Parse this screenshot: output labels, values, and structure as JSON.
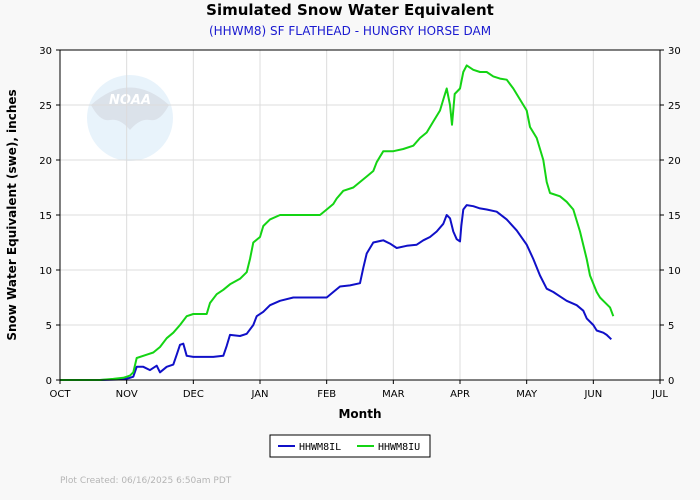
{
  "chart_data": {
    "type": "line",
    "title": "Simulated Snow Water Equivalent",
    "subtitle": "(HHWM8) SF FLATHEAD - HUNGRY HORSE DAM",
    "xlabel": "Month",
    "ylabel": "Snow Water Equivalent (swe),  inches",
    "x_range": [
      0,
      9
    ],
    "x_ticks": [
      "OCT",
      "NOV",
      "DEC",
      "JAN",
      "FEB",
      "MAR",
      "APR",
      "MAY",
      "JUN",
      "JUL"
    ],
    "y_range": [
      0,
      30
    ],
    "y_ticks": [
      0,
      5,
      10,
      15,
      20,
      25,
      30
    ],
    "grid": true,
    "legend_position": "bottom-center",
    "logo_text": "NOAA",
    "series": [
      {
        "name": "HHWM8IL",
        "color": "#1010c8",
        "points": [
          [
            0,
            0
          ],
          [
            0.6,
            0
          ],
          [
            0.95,
            0.05
          ],
          [
            1.05,
            0.2
          ],
          [
            1.1,
            0.3
          ],
          [
            1.15,
            1.2
          ],
          [
            1.25,
            1.2
          ],
          [
            1.35,
            0.9
          ],
          [
            1.45,
            1.3
          ],
          [
            1.5,
            0.7
          ],
          [
            1.6,
            1.2
          ],
          [
            1.7,
            1.4
          ],
          [
            1.75,
            2.3
          ],
          [
            1.8,
            3.2
          ],
          [
            1.85,
            3.3
          ],
          [
            1.9,
            2.2
          ],
          [
            2.0,
            2.1
          ],
          [
            2.15,
            2.1
          ],
          [
            2.3,
            2.1
          ],
          [
            2.45,
            2.2
          ],
          [
            2.5,
            3.1
          ],
          [
            2.55,
            4.1
          ],
          [
            2.7,
            4.0
          ],
          [
            2.8,
            4.2
          ],
          [
            2.9,
            5.0
          ],
          [
            2.95,
            5.8
          ],
          [
            3.05,
            6.2
          ],
          [
            3.15,
            6.8
          ],
          [
            3.3,
            7.2
          ],
          [
            3.5,
            7.5
          ],
          [
            3.8,
            7.5
          ],
          [
            4.0,
            7.5
          ],
          [
            4.1,
            8.0
          ],
          [
            4.2,
            8.5
          ],
          [
            4.35,
            8.6
          ],
          [
            4.5,
            8.8
          ],
          [
            4.55,
            10.2
          ],
          [
            4.6,
            11.5
          ],
          [
            4.7,
            12.5
          ],
          [
            4.85,
            12.7
          ],
          [
            4.95,
            12.4
          ],
          [
            5.05,
            12.0
          ],
          [
            5.2,
            12.2
          ],
          [
            5.35,
            12.3
          ],
          [
            5.45,
            12.7
          ],
          [
            5.55,
            13.0
          ],
          [
            5.65,
            13.5
          ],
          [
            5.75,
            14.2
          ],
          [
            5.8,
            15.0
          ],
          [
            5.85,
            14.7
          ],
          [
            5.9,
            13.5
          ],
          [
            5.95,
            12.8
          ],
          [
            6.0,
            12.6
          ],
          [
            6.02,
            14.0
          ],
          [
            6.05,
            15.5
          ],
          [
            6.1,
            15.9
          ],
          [
            6.2,
            15.8
          ],
          [
            6.3,
            15.6
          ],
          [
            6.4,
            15.5
          ],
          [
            6.55,
            15.3
          ],
          [
            6.7,
            14.6
          ],
          [
            6.85,
            13.6
          ],
          [
            7.0,
            12.3
          ],
          [
            7.1,
            11.0
          ],
          [
            7.2,
            9.5
          ],
          [
            7.3,
            8.3
          ],
          [
            7.4,
            8.0
          ],
          [
            7.5,
            7.6
          ],
          [
            7.6,
            7.2
          ],
          [
            7.75,
            6.8
          ],
          [
            7.85,
            6.3
          ],
          [
            7.9,
            5.6
          ],
          [
            8.0,
            5.0
          ],
          [
            8.05,
            4.5
          ],
          [
            8.15,
            4.3
          ],
          [
            8.2,
            4.1
          ],
          [
            8.27,
            3.7
          ]
        ]
      },
      {
        "name": "HHWM8IU",
        "color": "#14d414",
        "points": [
          [
            0,
            0
          ],
          [
            0.6,
            0
          ],
          [
            0.8,
            0.1
          ],
          [
            0.95,
            0.2
          ],
          [
            1.05,
            0.4
          ],
          [
            1.1,
            0.7
          ],
          [
            1.15,
            2.0
          ],
          [
            1.3,
            2.3
          ],
          [
            1.4,
            2.5
          ],
          [
            1.5,
            3.0
          ],
          [
            1.6,
            3.8
          ],
          [
            1.7,
            4.3
          ],
          [
            1.8,
            5.0
          ],
          [
            1.9,
            5.8
          ],
          [
            2.0,
            6.0
          ],
          [
            2.1,
            6.0
          ],
          [
            2.2,
            6.0
          ],
          [
            2.25,
            7.0
          ],
          [
            2.35,
            7.8
          ],
          [
            2.45,
            8.2
          ],
          [
            2.55,
            8.7
          ],
          [
            2.7,
            9.2
          ],
          [
            2.8,
            9.8
          ],
          [
            2.85,
            11.0
          ],
          [
            2.9,
            12.5
          ],
          [
            3.0,
            13.0
          ],
          [
            3.05,
            14.0
          ],
          [
            3.15,
            14.6
          ],
          [
            3.3,
            15.0
          ],
          [
            3.6,
            15.0
          ],
          [
            3.9,
            15.0
          ],
          [
            4.0,
            15.5
          ],
          [
            4.1,
            16.0
          ],
          [
            4.15,
            16.5
          ],
          [
            4.25,
            17.2
          ],
          [
            4.4,
            17.5
          ],
          [
            4.5,
            18.0
          ],
          [
            4.6,
            18.5
          ],
          [
            4.7,
            19.0
          ],
          [
            4.75,
            19.8
          ],
          [
            4.85,
            20.8
          ],
          [
            5.0,
            20.8
          ],
          [
            5.15,
            21.0
          ],
          [
            5.3,
            21.3
          ],
          [
            5.4,
            22.0
          ],
          [
            5.5,
            22.5
          ],
          [
            5.6,
            23.5
          ],
          [
            5.7,
            24.5
          ],
          [
            5.75,
            25.5
          ],
          [
            5.8,
            26.5
          ],
          [
            5.85,
            25.0
          ],
          [
            5.88,
            23.2
          ],
          [
            5.92,
            26.0
          ],
          [
            6.0,
            26.5
          ],
          [
            6.05,
            28.0
          ],
          [
            6.1,
            28.6
          ],
          [
            6.2,
            28.2
          ],
          [
            6.3,
            28.0
          ],
          [
            6.4,
            28.0
          ],
          [
            6.5,
            27.6
          ],
          [
            6.6,
            27.4
          ],
          [
            6.7,
            27.3
          ],
          [
            6.8,
            26.5
          ],
          [
            6.9,
            25.5
          ],
          [
            7.0,
            24.5
          ],
          [
            7.05,
            23.0
          ],
          [
            7.15,
            22.0
          ],
          [
            7.25,
            20.0
          ],
          [
            7.3,
            18.0
          ],
          [
            7.35,
            17.0
          ],
          [
            7.5,
            16.7
          ],
          [
            7.6,
            16.2
          ],
          [
            7.7,
            15.5
          ],
          [
            7.8,
            13.5
          ],
          [
            7.9,
            11.0
          ],
          [
            7.95,
            9.5
          ],
          [
            8.05,
            8.0
          ],
          [
            8.1,
            7.5
          ],
          [
            8.15,
            7.2
          ],
          [
            8.25,
            6.6
          ],
          [
            8.3,
            5.8
          ]
        ]
      }
    ]
  },
  "footer": {
    "created_label": "Plot Created: 06/16/2025 6:50am PDT"
  }
}
